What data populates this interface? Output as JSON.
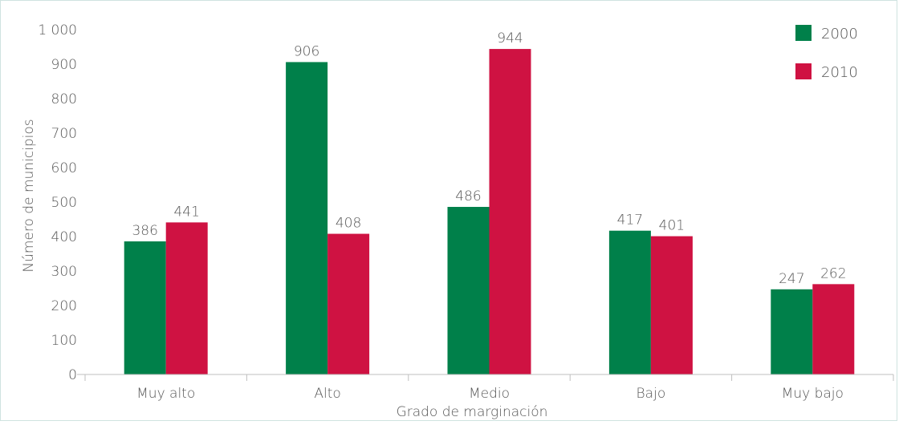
{
  "chart_data": {
    "type": "bar",
    "title": "",
    "xlabel": "Grado de marginación",
    "ylabel": "Número de municipios",
    "categories": [
      "Muy alto",
      "Alto",
      "Medio",
      "Bajo",
      "Muy bajo"
    ],
    "series": [
      {
        "name": "2000",
        "color": "#00804a",
        "values": [
          386,
          906,
          486,
          417,
          247
        ]
      },
      {
        "name": "2010",
        "color": "#cf1242",
        "values": [
          441,
          408,
          944,
          401,
          262
        ]
      }
    ],
    "ylim": [
      0,
      1000
    ],
    "yticks": [
      0,
      100,
      200,
      300,
      400,
      500,
      600,
      700,
      800,
      900,
      1000
    ],
    "ytick_labels": [
      "0",
      "100",
      "200",
      "300",
      "400",
      "500",
      "600",
      "700",
      "800",
      "900",
      "1 000"
    ],
    "grid": false,
    "legend": "top-right"
  }
}
